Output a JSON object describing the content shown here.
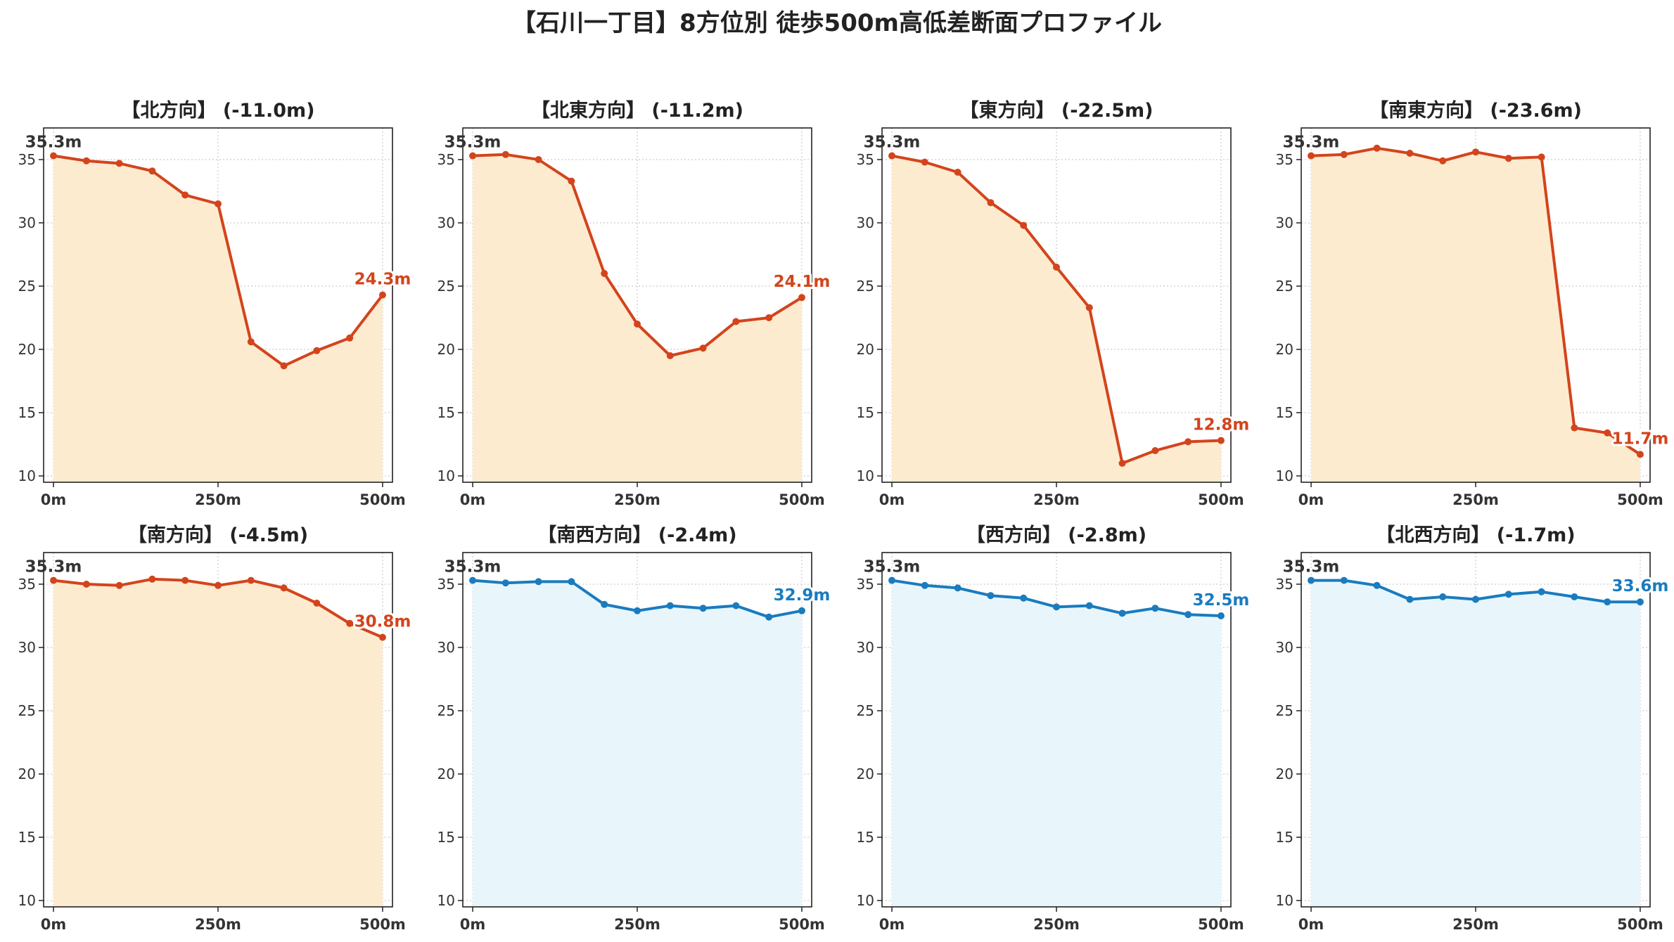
{
  "figure_title": "【石川一丁目】8方位別 徒歩500m高低差断面プロファイル",
  "colors": {
    "down_line": "#d3441c",
    "down_fill": "#fdebd0",
    "up_line": "#1a7bbf",
    "up_fill": "#e8f6fc",
    "grid": "#cccccc",
    "start_label": "#333333"
  },
  "chart_data": [
    {
      "type": "line",
      "title": "【北方向】 (-11.0m)",
      "x": [
        0,
        50,
        100,
        150,
        200,
        250,
        300,
        350,
        400,
        450,
        500
      ],
      "values": [
        35.3,
        34.9,
        34.7,
        34.1,
        32.2,
        31.5,
        20.6,
        18.7,
        19.9,
        20.9,
        24.3
      ],
      "start_label": "35.3m",
      "end_label": "24.3m",
      "style": "down",
      "xticks": [
        "0m",
        "250m",
        "500m"
      ],
      "yticks": [
        10,
        15,
        20,
        25,
        30,
        35
      ],
      "ylim": [
        9.5,
        37.5
      ],
      "xlim": [
        -15,
        515
      ],
      "grid": true
    },
    {
      "type": "line",
      "title": "【北東方向】 (-11.2m)",
      "x": [
        0,
        50,
        100,
        150,
        200,
        250,
        300,
        350,
        400,
        450,
        500
      ],
      "values": [
        35.3,
        35.4,
        35.0,
        33.3,
        26.0,
        22.0,
        19.5,
        20.1,
        22.2,
        22.5,
        24.1
      ],
      "start_label": "35.3m",
      "end_label": "24.1m",
      "style": "down",
      "xticks": [
        "0m",
        "250m",
        "500m"
      ],
      "yticks": [
        10,
        15,
        20,
        25,
        30,
        35
      ],
      "ylim": [
        9.5,
        37.5
      ],
      "xlim": [
        -15,
        515
      ],
      "grid": true
    },
    {
      "type": "line",
      "title": "【東方向】 (-22.5m)",
      "x": [
        0,
        50,
        100,
        150,
        200,
        250,
        300,
        350,
        400,
        450,
        500
      ],
      "values": [
        35.3,
        34.8,
        34.0,
        31.6,
        29.8,
        26.5,
        23.3,
        11.0,
        12.0,
        12.7,
        12.8
      ],
      "start_label": "35.3m",
      "end_label": "12.8m",
      "style": "down",
      "xticks": [
        "0m",
        "250m",
        "500m"
      ],
      "yticks": [
        10,
        15,
        20,
        25,
        30,
        35
      ],
      "ylim": [
        9.5,
        37.5
      ],
      "xlim": [
        -15,
        515
      ],
      "grid": true
    },
    {
      "type": "line",
      "title": "【南東方向】 (-23.6m)",
      "x": [
        0,
        50,
        100,
        150,
        200,
        250,
        300,
        350,
        400,
        450,
        500
      ],
      "values": [
        35.3,
        35.4,
        35.9,
        35.5,
        34.9,
        35.6,
        35.1,
        35.2,
        13.8,
        13.4,
        11.7
      ],
      "start_label": "35.3m",
      "end_label": "11.7m",
      "style": "down",
      "xticks": [
        "0m",
        "250m",
        "500m"
      ],
      "yticks": [
        10,
        15,
        20,
        25,
        30,
        35
      ],
      "ylim": [
        9.5,
        37.5
      ],
      "xlim": [
        -15,
        515
      ],
      "grid": true
    },
    {
      "type": "line",
      "title": "【南方向】 (-4.5m)",
      "x": [
        0,
        50,
        100,
        150,
        200,
        250,
        300,
        350,
        400,
        450,
        500
      ],
      "values": [
        35.3,
        35.0,
        34.9,
        35.4,
        35.3,
        34.9,
        35.3,
        34.7,
        33.5,
        31.9,
        30.8
      ],
      "start_label": "35.3m",
      "end_label": "30.8m",
      "style": "down",
      "xticks": [
        "0m",
        "250m",
        "500m"
      ],
      "yticks": [
        10,
        15,
        20,
        25,
        30,
        35
      ],
      "ylim": [
        9.5,
        37.5
      ],
      "xlim": [
        -15,
        515
      ],
      "grid": true
    },
    {
      "type": "line",
      "title": "【南西方向】 (-2.4m)",
      "x": [
        0,
        50,
        100,
        150,
        200,
        250,
        300,
        350,
        400,
        450,
        500
      ],
      "values": [
        35.3,
        35.1,
        35.2,
        35.2,
        33.4,
        32.9,
        33.3,
        33.1,
        33.3,
        32.4,
        32.9
      ],
      "start_label": "35.3m",
      "end_label": "32.9m",
      "style": "up",
      "xticks": [
        "0m",
        "250m",
        "500m"
      ],
      "yticks": [
        10,
        15,
        20,
        25,
        30,
        35
      ],
      "ylim": [
        9.5,
        37.5
      ],
      "xlim": [
        -15,
        515
      ],
      "grid": true
    },
    {
      "type": "line",
      "title": "【西方向】 (-2.8m)",
      "x": [
        0,
        50,
        100,
        150,
        200,
        250,
        300,
        350,
        400,
        450,
        500
      ],
      "values": [
        35.3,
        34.9,
        34.7,
        34.1,
        33.9,
        33.2,
        33.3,
        32.7,
        33.1,
        32.6,
        32.5
      ],
      "start_label": "35.3m",
      "end_label": "32.5m",
      "style": "up",
      "xticks": [
        "0m",
        "250m",
        "500m"
      ],
      "yticks": [
        10,
        15,
        20,
        25,
        30,
        35
      ],
      "ylim": [
        9.5,
        37.5
      ],
      "xlim": [
        -15,
        515
      ],
      "grid": true
    },
    {
      "type": "line",
      "title": "【北西方向】 (-1.7m)",
      "x": [
        0,
        50,
        100,
        150,
        200,
        250,
        300,
        350,
        400,
        450,
        500
      ],
      "values": [
        35.3,
        35.3,
        34.9,
        33.8,
        34.0,
        33.8,
        34.2,
        34.4,
        34.0,
        33.6,
        33.6
      ],
      "start_label": "35.3m",
      "end_label": "33.6m",
      "style": "up",
      "xticks": [
        "0m",
        "250m",
        "500m"
      ],
      "yticks": [
        10,
        15,
        20,
        25,
        30,
        35
      ],
      "ylim": [
        9.5,
        37.5
      ],
      "xlim": [
        -15,
        515
      ],
      "grid": true
    }
  ]
}
